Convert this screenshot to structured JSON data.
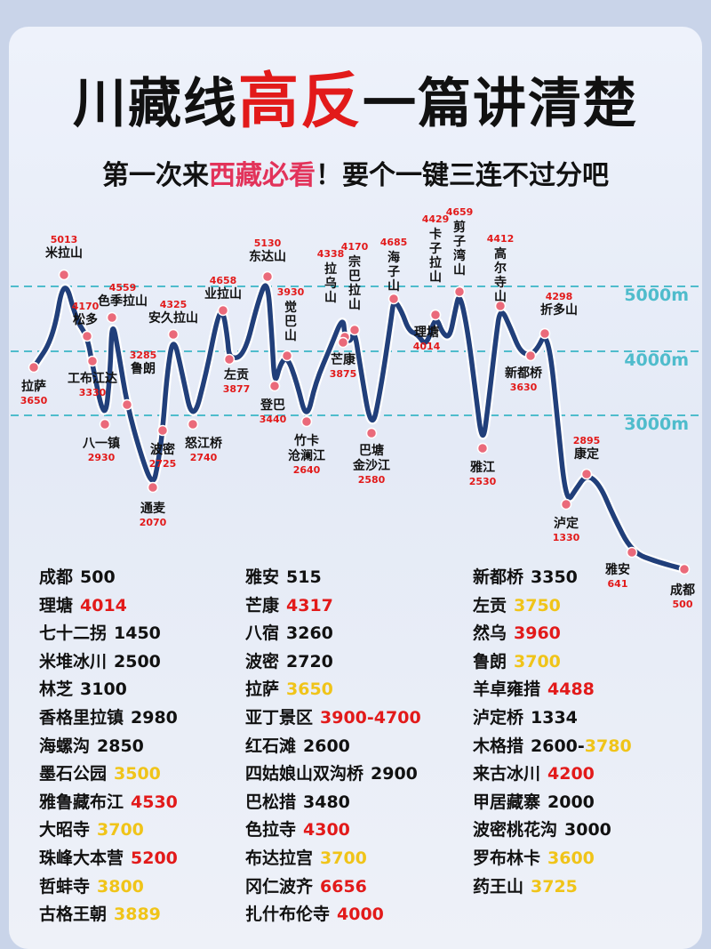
{
  "title": {
    "part1": "川藏线",
    "highlight": "高反",
    "part2": "一篇讲清楚"
  },
  "subtitle": {
    "part1": "第一次来",
    "highlight": "西藏必看",
    "part2": "！要个一键三连不过分吧"
  },
  "chart_data": {
    "type": "line",
    "title": "",
    "xlabel": "",
    "ylabel": "",
    "reference_lines": [
      "5000m",
      "4000m",
      "3000m"
    ],
    "points": [
      {
        "name": "拉萨",
        "alt": "3650"
      },
      {
        "name": "米拉山",
        "alt": "5013"
      },
      {
        "name": "松多",
        "alt": "4170"
      },
      {
        "name": "工布江达",
        "alt": "3330"
      },
      {
        "name": "八一镇",
        "alt": "2930"
      },
      {
        "name": "色季拉山",
        "alt": "4559"
      },
      {
        "name": "鲁朗",
        "alt": "3285"
      },
      {
        "name": "通麦",
        "alt": "2070"
      },
      {
        "name": "波密",
        "alt": "2725"
      },
      {
        "name": "安久拉山",
        "alt": "4325"
      },
      {
        "name": "怒江桥",
        "alt": "2740"
      },
      {
        "name": "业拉山",
        "alt": "4658"
      },
      {
        "name": "左贡",
        "alt": "3877"
      },
      {
        "name": "东达山",
        "alt": "5130"
      },
      {
        "name": "登巴",
        "alt": "3440"
      },
      {
        "name": "觉巴山",
        "alt": "3930"
      },
      {
        "name": "竹卡",
        "sub": "沧澜江",
        "alt": "2640"
      },
      {
        "name": "拉乌山",
        "alt": "4338"
      },
      {
        "name": "芒康",
        "alt": "3875"
      },
      {
        "name": "宗巴拉山",
        "alt": "4170"
      },
      {
        "name": "巴塘",
        "sub": "金沙江",
        "alt": "2580"
      },
      {
        "name": "海子山",
        "alt": "4685"
      },
      {
        "name": "理塘",
        "alt": "4014"
      },
      {
        "name": "卡子拉山",
        "alt": "4429"
      },
      {
        "name": "剪子湾山",
        "alt": "4659"
      },
      {
        "name": "雅江",
        "alt": "2530"
      },
      {
        "name": "高尔寺山",
        "alt": "4412"
      },
      {
        "name": "新都桥",
        "alt": "3630"
      },
      {
        "name": "折多山",
        "alt": "4298"
      },
      {
        "name": "泸定",
        "alt": "1330"
      },
      {
        "name": "康定",
        "alt": "2895"
      },
      {
        "name": "雅安",
        "alt": "641"
      },
      {
        "name": "成都",
        "alt": "500"
      }
    ]
  },
  "table": {
    "col1": [
      {
        "name": "成都",
        "value": "500",
        "color": "black"
      },
      {
        "name": "理塘",
        "value": "4014",
        "color": "red"
      },
      {
        "name": "七十二拐",
        "value": "1450",
        "color": "black"
      },
      {
        "name": "米堆冰川",
        "value": "2500",
        "color": "black"
      },
      {
        "name": "林芝",
        "value": "3100",
        "color": "black"
      },
      {
        "name": "香格里拉镇",
        "value": "2980",
        "color": "black"
      },
      {
        "name": "海螺沟",
        "value": "2850",
        "color": "black"
      },
      {
        "name": "墨石公园",
        "value": "3500",
        "color": "yellow"
      },
      {
        "name": "雅鲁藏布江",
        "value": "4530",
        "color": "red"
      },
      {
        "name": "大昭寺",
        "value": "3700",
        "color": "yellow"
      },
      {
        "name": "珠峰大本营",
        "value": "5200",
        "color": "red"
      },
      {
        "name": "哲蚌寺",
        "value": "3800",
        "color": "yellow"
      },
      {
        "name": "古格王朝",
        "value": "3889",
        "color": "yellow"
      }
    ],
    "col2": [
      {
        "name": "雅安",
        "value": "515",
        "color": "black"
      },
      {
        "name": "芒康",
        "value": "4317",
        "color": "red"
      },
      {
        "name": "八宿",
        "value": "3260",
        "color": "black"
      },
      {
        "name": "波密",
        "value": "2720",
        "color": "black"
      },
      {
        "name": "拉萨",
        "value": "3650",
        "color": "yellow"
      },
      {
        "name": "亚丁景区",
        "value": "3900-4700",
        "color": "red"
      },
      {
        "name": "红石滩",
        "value": "2600",
        "color": "black"
      },
      {
        "name": "四姑娘山双沟桥",
        "value": "2900",
        "color": "black"
      },
      {
        "name": "巴松措",
        "value": "3480",
        "color": "black"
      },
      {
        "name": "色拉寺",
        "value": "4300",
        "color": "red"
      },
      {
        "name": "布达拉宫",
        "value": "3700",
        "color": "yellow"
      },
      {
        "name": "冈仁波齐",
        "value": "6656",
        "color": "red"
      },
      {
        "name": "扎什布伦寺",
        "value": "4000",
        "color": "red"
      }
    ],
    "col3": [
      {
        "name": "新都桥",
        "value": "3350",
        "color": "black"
      },
      {
        "name": "左贡",
        "value": "3750",
        "color": "yellow"
      },
      {
        "name": "然乌",
        "value": "3960",
        "color": "red"
      },
      {
        "name": "鲁朗",
        "value": "3700",
        "color": "yellow"
      },
      {
        "name": "羊卓雍措",
        "value": "4488",
        "color": "red"
      },
      {
        "name": "泸定桥",
        "value": "1334",
        "color": "black"
      },
      {
        "name": "木格措",
        "value": "2600-",
        "value2": "3780",
        "color": "black",
        "color2": "yellow"
      },
      {
        "name": "来古冰川",
        "value": "4200",
        "color": "red"
      },
      {
        "name": "甲居藏寨",
        "value": "2000",
        "color": "black"
      },
      {
        "name": "波密桃花沟",
        "value": "3000",
        "color": "black"
      },
      {
        "name": "罗布林卡",
        "value": "3600",
        "color": "yellow"
      },
      {
        "name": "药王山",
        "value": "3725",
        "color": "yellow"
      }
    ]
  },
  "colors": {
    "line": "#213f7a",
    "line_outline": "#ffffff",
    "dot": "#ea6a7a",
    "accent_red": "#e21a1a",
    "accent_yellow": "#f0c419",
    "ref_line": "#4fbccc"
  }
}
